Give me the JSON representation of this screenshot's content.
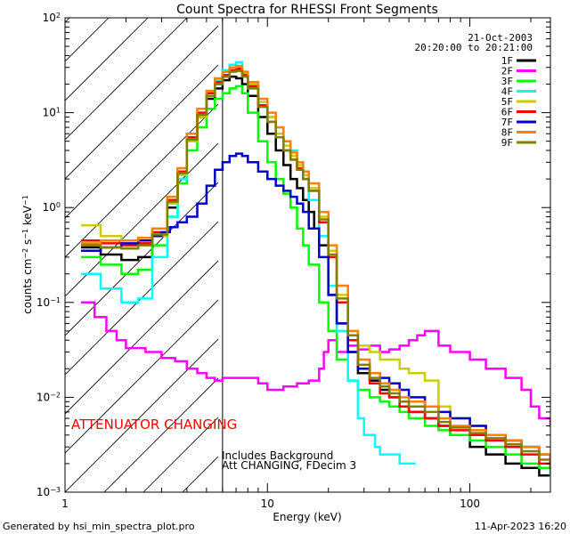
{
  "chart_data": {
    "type": "line",
    "title": "Count Spectra for RHESSI Front Segments",
    "xlabel": "Energy (keV)",
    "ylabel": "counts cm⁻² s⁻¹ keV⁻¹",
    "ylabel_parts": {
      "base": "counts cm",
      "exp1": "−2",
      "mid1": " s",
      "exp2": "−1",
      "mid2": " keV",
      "exp3": "−1"
    },
    "xscale": "log",
    "yscale": "log",
    "xlim": [
      1,
      250
    ],
    "ylim": [
      0.001,
      100
    ],
    "x_tick_labels": [
      "1",
      "10",
      "100"
    ],
    "y_tick_labels": [
      {
        "base": "10",
        "exp": "−3"
      },
      {
        "base": "10",
        "exp": "−2"
      },
      {
        "base": "10",
        "exp": "−1"
      },
      {
        "base": "10",
        "exp": "0"
      },
      {
        "base": "10",
        "exp": "1"
      },
      {
        "base": "10",
        "exp": "2"
      }
    ],
    "date": "21-Oct-2003",
    "time_range": "20:20:00 to 20:21:00",
    "attenuator_energy": 6,
    "hatched_region": [
      1,
      6
    ],
    "annotation_attenuator": "ATTENUATOR CHANGING",
    "annotation_background": "Includes Background",
    "annotation_att": "Att CHANGING, FDecim 3",
    "footer_left": "Generated by hsi_min_spectra_plot.pro",
    "footer_right": "11-Apr-2023 16:20",
    "legend_position": "top-right",
    "series": [
      {
        "name": "1F",
        "color": "#000000",
        "x": [
          1.2,
          1.5,
          1.9,
          2.3,
          2.7,
          3.2,
          3.6,
          4.0,
          4.5,
          5.0,
          5.5,
          6.0,
          6.5,
          7.0,
          7.5,
          8.0,
          9.0,
          10.0,
          11.0,
          12.0,
          13.0,
          14.0,
          15.0,
          16.0,
          17.0,
          18.0,
          20.0,
          22.0,
          25.0,
          28.0,
          32.0,
          36.0,
          40.0,
          45.0,
          50.0,
          60.0,
          70.0,
          80.0,
          100.0,
          120.0,
          150.0,
          180.0,
          220.0,
          250.0
        ],
        "values": [
          0.38,
          0.32,
          0.28,
          0.3,
          0.5,
          1.0,
          2.0,
          5.0,
          9.0,
          14.0,
          18.0,
          22.0,
          24.0,
          23.0,
          20.0,
          15.0,
          9.0,
          6.0,
          4.0,
          2.8,
          2.0,
          1.6,
          1.2,
          0.9,
          0.6,
          0.4,
          0.12,
          0.06,
          0.03,
          0.018,
          0.015,
          0.012,
          0.01,
          0.008,
          0.007,
          0.006,
          0.005,
          0.004,
          0.003,
          0.0025,
          0.002,
          0.0018,
          0.0015,
          0.0015
        ]
      },
      {
        "name": "2F",
        "color": "#ff00ff",
        "x": [
          1.2,
          1.4,
          1.6,
          1.8,
          2.0,
          2.5,
          3.0,
          3.5,
          4.0,
          4.5,
          5.0,
          5.5,
          6.0,
          7.0,
          8.0,
          9.0,
          10.0,
          12.0,
          14.0,
          16.0,
          18.0,
          19.0,
          20.0,
          22.0,
          25.0,
          28.0,
          32.0,
          36.0,
          40.0,
          45.0,
          50.0,
          55.0,
          60.0,
          70.0,
          80.0,
          100.0,
          120.0,
          150.0,
          180.0,
          200.0,
          220.0,
          250.0
        ],
        "values": [
          0.1,
          0.07,
          0.05,
          0.04,
          0.033,
          0.03,
          0.026,
          0.024,
          0.02,
          0.018,
          0.016,
          0.015,
          0.016,
          0.016,
          0.016,
          0.014,
          0.012,
          0.013,
          0.014,
          0.015,
          0.02,
          0.03,
          0.04,
          0.03,
          0.035,
          0.032,
          0.035,
          0.03,
          0.032,
          0.035,
          0.04,
          0.045,
          0.05,
          0.035,
          0.03,
          0.025,
          0.02,
          0.016,
          0.012,
          0.008,
          0.006,
          0.005
        ]
      },
      {
        "name": "3F",
        "color": "#00ff00",
        "x": [
          1.2,
          1.5,
          1.9,
          2.3,
          2.7,
          3.2,
          3.6,
          4.0,
          4.5,
          5.0,
          5.5,
          6.0,
          6.5,
          7.0,
          7.5,
          8.0,
          9.0,
          10.0,
          11.0,
          12.0,
          13.0,
          14.0,
          15.0,
          16.0,
          18.0,
          20.0,
          22.0,
          25.0,
          28.0,
          32.0,
          36.0,
          40.0,
          45.0,
          50.0,
          60.0,
          70.0,
          80.0,
          100.0,
          120.0,
          150.0,
          180.0,
          220.0,
          250.0
        ],
        "values": [
          0.3,
          0.25,
          0.2,
          0.22,
          0.4,
          0.8,
          1.8,
          4.0,
          7.0,
          11.0,
          14.0,
          16.0,
          18.0,
          19.0,
          16.0,
          10.0,
          5.0,
          3.0,
          2.0,
          1.4,
          1.0,
          0.6,
          0.4,
          0.25,
          0.1,
          0.05,
          0.025,
          0.015,
          0.012,
          0.01,
          0.009,
          0.008,
          0.007,
          0.006,
          0.005,
          0.0045,
          0.004,
          0.0035,
          0.003,
          0.0025,
          0.002,
          0.0018,
          0.0015
        ]
      },
      {
        "name": "4F",
        "color": "#00ffff",
        "x": [
          1.2,
          1.5,
          1.9,
          2.3,
          2.7,
          3.2,
          3.6,
          4.0,
          4.5,
          5.0,
          5.5,
          6.0,
          6.5,
          7.0,
          7.5,
          8.0,
          9.0,
          10.0,
          11.0,
          12.0,
          13.0,
          14.0,
          15.0,
          16.0,
          18.0,
          20.0,
          22.0,
          25.0,
          28.0,
          30.0,
          32.0,
          34.0,
          36.0,
          40.0,
          45.0,
          50.0
        ],
        "values": [
          0.2,
          0.14,
          0.1,
          0.11,
          0.3,
          0.8,
          2.0,
          5.0,
          10.0,
          16.0,
          22.0,
          28.0,
          32.0,
          34.0,
          26.0,
          18.0,
          12.0,
          9.0,
          7.0,
          5.0,
          4.0,
          3.0,
          2.0,
          1.2,
          0.5,
          0.15,
          0.05,
          0.015,
          0.006,
          0.004,
          0.004,
          0.003,
          0.0025,
          0.0025,
          0.002,
          0.002
        ]
      },
      {
        "name": "5F",
        "color": "#cccc00",
        "x": [
          1.2,
          1.5,
          1.9,
          2.3,
          2.7,
          3.2,
          3.6,
          4.0,
          4.5,
          5.0,
          5.5,
          6.0,
          6.5,
          7.0,
          7.5,
          8.0,
          9.0,
          10.0,
          11.0,
          12.0,
          13.0,
          14.0,
          15.0,
          16.0,
          18.0,
          20.0,
          22.0,
          25.0,
          28.0,
          32.0,
          36.0,
          40.0,
          45.0,
          50.0,
          60.0,
          70.0,
          80.0,
          100.0,
          120.0,
          150.0,
          180.0,
          220.0,
          250.0
        ],
        "values": [
          0.65,
          0.5,
          0.45,
          0.42,
          0.5,
          1.1,
          2.2,
          5.0,
          9.0,
          15.0,
          20.0,
          24.0,
          28.0,
          30.0,
          26.0,
          20.0,
          13.0,
          9.0,
          6.0,
          4.5,
          3.5,
          2.8,
          2.2,
          1.6,
          0.8,
          0.35,
          0.12,
          0.05,
          0.035,
          0.03,
          0.025,
          0.025,
          0.02,
          0.018,
          0.015,
          0.008,
          0.006,
          0.005,
          0.004,
          0.0035,
          0.003,
          0.0025,
          0.002
        ]
      },
      {
        "name": "6F",
        "color": "#ff0000",
        "x": [
          1.2,
          1.5,
          1.9,
          2.3,
          2.7,
          3.2,
          3.6,
          4.0,
          4.5,
          5.0,
          5.5,
          6.0,
          6.5,
          7.0,
          7.5,
          8.0,
          9.0,
          10.0,
          11.0,
          12.0,
          13.0,
          14.0,
          15.0,
          16.0,
          18.0,
          20.0,
          22.0,
          25.0,
          28.0,
          32.0,
          36.0,
          40.0,
          45.0,
          50.0,
          60.0,
          70.0,
          80.0,
          100.0,
          120.0,
          150.0,
          180.0,
          220.0,
          250.0
        ],
        "values": [
          0.45,
          0.42,
          0.4,
          0.42,
          0.55,
          1.2,
          2.4,
          5.5,
          10.0,
          16.0,
          21.0,
          25.0,
          28.0,
          29.0,
          25.0,
          19.0,
          12.0,
          8.0,
          5.5,
          4.0,
          3.2,
          2.6,
          2.0,
          1.5,
          0.7,
          0.3,
          0.1,
          0.04,
          0.02,
          0.014,
          0.011,
          0.01,
          0.008,
          0.007,
          0.006,
          0.005,
          0.0045,
          0.004,
          0.0035,
          0.003,
          0.0025,
          0.002,
          0.0018
        ]
      },
      {
        "name": "7F",
        "color": "#0000cc",
        "x": [
          1.2,
          1.5,
          1.9,
          2.3,
          2.7,
          3.0,
          3.3,
          3.6,
          4.0,
          4.5,
          5.0,
          5.5,
          6.0,
          6.5,
          7.0,
          7.5,
          8.0,
          9.0,
          10.0,
          11.0,
          12.0,
          13.0,
          14.0,
          15.0,
          16.0,
          18.0,
          20.0,
          22.0,
          25.0,
          28.0,
          32.0,
          36.0,
          40.0,
          45.0,
          50.0,
          60.0,
          70.0,
          80.0,
          100.0,
          120.0,
          150.0,
          180.0,
          220.0,
          250.0
        ],
        "values": [
          0.35,
          0.38,
          0.42,
          0.45,
          0.5,
          0.55,
          0.62,
          0.7,
          0.8,
          1.1,
          1.7,
          2.5,
          3.0,
          3.5,
          3.7,
          3.5,
          3.0,
          2.4,
          2.0,
          1.7,
          1.5,
          1.3,
          1.1,
          0.9,
          0.6,
          0.3,
          0.12,
          0.06,
          0.03,
          0.02,
          0.018,
          0.016,
          0.014,
          0.012,
          0.01,
          0.008,
          0.007,
          0.006,
          0.005,
          0.004,
          0.0035,
          0.003,
          0.0025,
          0.002
        ]
      },
      {
        "name": "8F",
        "color": "#ff8000",
        "x": [
          1.2,
          1.5,
          1.9,
          2.3,
          2.7,
          3.2,
          3.6,
          4.0,
          4.5,
          5.0,
          5.5,
          6.0,
          6.5,
          7.0,
          7.5,
          8.0,
          9.0,
          10.0,
          11.0,
          12.0,
          13.0,
          14.0,
          15.0,
          16.0,
          18.0,
          20.0,
          22.0,
          25.0,
          28.0,
          32.0,
          36.0,
          40.0,
          45.0,
          50.0,
          60.0,
          70.0,
          80.0,
          100.0,
          120.0,
          150.0,
          180.0,
          220.0,
          250.0
        ],
        "values": [
          0.42,
          0.45,
          0.45,
          0.48,
          0.6,
          1.3,
          2.6,
          6.0,
          11.0,
          17.0,
          23.0,
          27.0,
          30.0,
          31.0,
          27.0,
          21.0,
          14.0,
          10.0,
          7.0,
          5.0,
          3.8,
          3.0,
          2.4,
          1.8,
          0.9,
          0.4,
          0.15,
          0.05,
          0.025,
          0.018,
          0.014,
          0.012,
          0.01,
          0.009,
          0.008,
          0.006,
          0.005,
          0.0045,
          0.004,
          0.0035,
          0.003,
          0.0025,
          0.002
        ]
      },
      {
        "name": "9F",
        "color": "#808000",
        "x": [
          1.2,
          1.5,
          1.9,
          2.3,
          2.7,
          3.2,
          3.6,
          4.0,
          4.5,
          5.0,
          5.5,
          6.0,
          6.5,
          7.0,
          7.5,
          8.0,
          9.0,
          10.0,
          11.0,
          12.0,
          13.0,
          14.0,
          15.0,
          16.0,
          18.0,
          20.0,
          22.0,
          25.0,
          28.0,
          32.0,
          36.0,
          40.0,
          45.0,
          50.0,
          60.0,
          70.0,
          80.0,
          100.0,
          120.0,
          150.0,
          180.0,
          220.0,
          250.0
        ],
        "values": [
          0.4,
          0.38,
          0.37,
          0.4,
          0.52,
          1.15,
          2.3,
          5.2,
          9.5,
          15.0,
          20.0,
          24.0,
          27.0,
          27.5,
          24.0,
          18.0,
          11.5,
          8.0,
          5.5,
          4.0,
          3.2,
          2.5,
          2.0,
          1.5,
          0.75,
          0.32,
          0.11,
          0.045,
          0.022,
          0.016,
          0.013,
          0.011,
          0.009,
          0.008,
          0.007,
          0.0055,
          0.0048,
          0.0042,
          0.0037,
          0.0032,
          0.0027,
          0.0022,
          0.0019
        ]
      }
    ]
  }
}
